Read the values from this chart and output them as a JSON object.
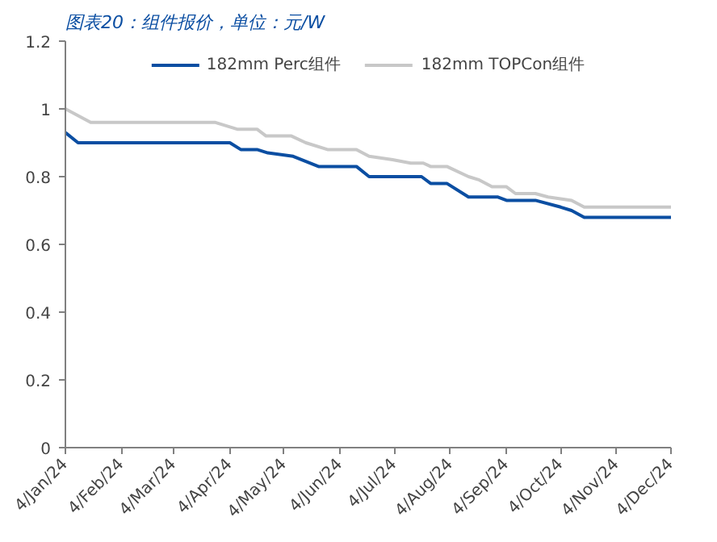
{
  "chart_data": {
    "type": "line",
    "title": "图表20：组件报价，单位：元/W",
    "series": [
      {
        "name": "182mm Perc组件",
        "color": "#0b4ea2",
        "x": [
          "2024-01-04",
          "2024-01-11",
          "2024-04-04",
          "2024-04-10",
          "2024-04-19",
          "2024-04-25",
          "2024-05-09",
          "2024-05-23",
          "2024-06-13",
          "2024-06-20",
          "2024-07-19",
          "2024-07-24",
          "2024-08-02",
          "2024-08-14",
          "2024-08-30",
          "2024-09-04",
          "2024-09-20",
          "2024-10-04",
          "2024-10-10",
          "2024-10-17",
          "2024-12-04"
        ],
        "values": [
          0.93,
          0.9,
          0.9,
          0.88,
          0.88,
          0.87,
          0.86,
          0.83,
          0.83,
          0.8,
          0.8,
          0.78,
          0.78,
          0.74,
          0.74,
          0.73,
          0.73,
          0.71,
          0.7,
          0.68,
          0.68
        ]
      },
      {
        "name": "182mm TOPCon组件",
        "color": "#c8c8c8",
        "x": [
          "2024-01-04",
          "2024-01-18",
          "2024-03-27",
          "2024-04-08",
          "2024-04-19",
          "2024-04-24",
          "2024-05-08",
          "2024-05-16",
          "2024-05-28",
          "2024-06-13",
          "2024-06-20",
          "2024-07-03",
          "2024-07-13",
          "2024-07-20",
          "2024-07-24",
          "2024-08-02",
          "2024-08-14",
          "2024-08-20",
          "2024-08-27",
          "2024-09-04",
          "2024-09-09",
          "2024-09-20",
          "2024-09-27",
          "2024-10-10",
          "2024-10-17",
          "2024-12-04"
        ],
        "values": [
          1.0,
          0.96,
          0.96,
          0.94,
          0.94,
          0.92,
          0.92,
          0.9,
          0.88,
          0.88,
          0.86,
          0.85,
          0.84,
          0.84,
          0.83,
          0.83,
          0.8,
          0.79,
          0.77,
          0.77,
          0.75,
          0.75,
          0.74,
          0.73,
          0.71,
          0.71
        ]
      }
    ],
    "xlim": [
      "2024-01-04",
      "2024-12-04"
    ],
    "xticks": [
      {
        "value": "2024-01-04",
        "label": "4/Jan/24"
      },
      {
        "value": "2024-02-04",
        "label": "4/Feb/24"
      },
      {
        "value": "2024-03-04",
        "label": "4/Mar/24"
      },
      {
        "value": "2024-04-04",
        "label": "4/Apr/24"
      },
      {
        "value": "2024-05-04",
        "label": "4/May/24"
      },
      {
        "value": "2024-06-04",
        "label": "4/Jun/24"
      },
      {
        "value": "2024-07-04",
        "label": "4/Jul/24"
      },
      {
        "value": "2024-08-04",
        "label": "4/Aug/24"
      },
      {
        "value": "2024-09-04",
        "label": "4/Sep/24"
      },
      {
        "value": "2024-10-04",
        "label": "4/Oct/24"
      },
      {
        "value": "2024-11-04",
        "label": "4/Nov/24"
      },
      {
        "value": "2024-12-04",
        "label": "4/Dec/24"
      }
    ],
    "ylim": [
      0,
      1.2
    ],
    "yticks": [
      0,
      0.2,
      0.4,
      0.6,
      0.8,
      1,
      1.2
    ],
    "legend": "top",
    "grid": false,
    "marker": "none",
    "line_style": "solid"
  }
}
